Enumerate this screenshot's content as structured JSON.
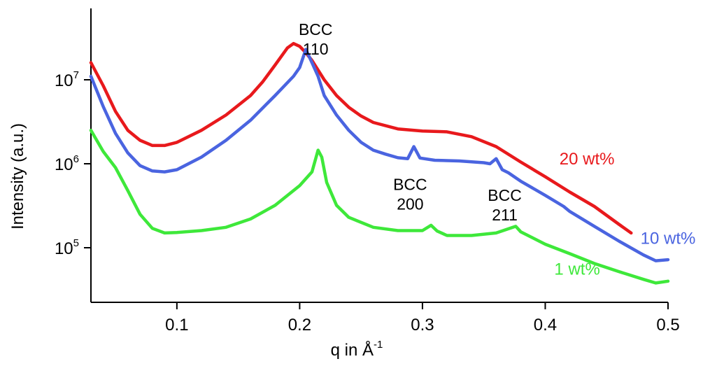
{
  "chart_data": {
    "type": "line",
    "title": "",
    "xlabel": {
      "main": "q in Å",
      "superscript": "-1"
    },
    "ylabel": "Intensity (a.u.)",
    "x_scale": "linear",
    "y_scale": "log",
    "xlim": [
      0.03,
      0.5
    ],
    "ylim": [
      30000,
      100000000
    ],
    "x_ticks": [
      0.1,
      0.2,
      0.3,
      0.4,
      0.5
    ],
    "x_tick_labels": [
      "0.1",
      "0.2",
      "0.3",
      "0.4",
      "0.5"
    ],
    "y_ticks": [
      100000,
      1000000,
      10000000
    ],
    "y_tick_labels": [
      {
        "base": "10",
        "exp": "5"
      },
      {
        "base": "10",
        "exp": "6"
      },
      {
        "base": "10",
        "exp": "7"
      }
    ],
    "grid": false,
    "legend": "none",
    "series": [
      {
        "name": "20 wt%",
        "color": "#e8191c",
        "points": [
          [
            0.03,
            16000000
          ],
          [
            0.04,
            8500000
          ],
          [
            0.05,
            4200000
          ],
          [
            0.06,
            2500000
          ],
          [
            0.07,
            1900000
          ],
          [
            0.08,
            1650000
          ],
          [
            0.09,
            1650000
          ],
          [
            0.1,
            1800000
          ],
          [
            0.12,
            2500000
          ],
          [
            0.14,
            3800000
          ],
          [
            0.16,
            6500000
          ],
          [
            0.17,
            9500000
          ],
          [
            0.18,
            15000000
          ],
          [
            0.19,
            24000000
          ],
          [
            0.195,
            27000000
          ],
          [
            0.2,
            25000000
          ],
          [
            0.205,
            21000000
          ],
          [
            0.21,
            17000000
          ],
          [
            0.22,
            10000000
          ],
          [
            0.23,
            6500000
          ],
          [
            0.24,
            4700000
          ],
          [
            0.25,
            3700000
          ],
          [
            0.26,
            3100000
          ],
          [
            0.28,
            2600000
          ],
          [
            0.3,
            2450000
          ],
          [
            0.32,
            2400000
          ],
          [
            0.34,
            2100000
          ],
          [
            0.36,
            1600000
          ],
          [
            0.38,
            1050000
          ],
          [
            0.4,
            700000
          ],
          [
            0.42,
            460000
          ],
          [
            0.44,
            310000
          ],
          [
            0.46,
            190000
          ],
          [
            0.47,
            150000
          ]
        ]
      },
      {
        "name": "10 wt%",
        "color": "#4a64e0",
        "points": [
          [
            0.03,
            11000000
          ],
          [
            0.04,
            4800000
          ],
          [
            0.05,
            2300000
          ],
          [
            0.06,
            1350000
          ],
          [
            0.07,
            950000
          ],
          [
            0.08,
            820000
          ],
          [
            0.09,
            800000
          ],
          [
            0.1,
            850000
          ],
          [
            0.12,
            1200000
          ],
          [
            0.14,
            1900000
          ],
          [
            0.16,
            3300000
          ],
          [
            0.18,
            6500000
          ],
          [
            0.195,
            11000000
          ],
          [
            0.2,
            14000000
          ],
          [
            0.205,
            23000000
          ],
          [
            0.21,
            16000000
          ],
          [
            0.215,
            11000000
          ],
          [
            0.22,
            6500000
          ],
          [
            0.23,
            3800000
          ],
          [
            0.24,
            2500000
          ],
          [
            0.25,
            1800000
          ],
          [
            0.26,
            1450000
          ],
          [
            0.27,
            1300000
          ],
          [
            0.28,
            1180000
          ],
          [
            0.288,
            1150000
          ],
          [
            0.293,
            1600000
          ],
          [
            0.298,
            1170000
          ],
          [
            0.31,
            1100000
          ],
          [
            0.33,
            1080000
          ],
          [
            0.35,
            1030000
          ],
          [
            0.355,
            1000000
          ],
          [
            0.36,
            1150000
          ],
          [
            0.365,
            850000
          ],
          [
            0.37,
            780000
          ],
          [
            0.38,
            620000
          ],
          [
            0.4,
            420000
          ],
          [
            0.415,
            310000
          ],
          [
            0.42,
            270000
          ],
          [
            0.44,
            180000
          ],
          [
            0.46,
            120000
          ],
          [
            0.48,
            82000
          ],
          [
            0.49,
            70000
          ],
          [
            0.5,
            72000
          ]
        ]
      },
      {
        "name": "1 wt%",
        "color": "#3ee83a",
        "points": [
          [
            0.03,
            2500000
          ],
          [
            0.04,
            1400000
          ],
          [
            0.05,
            900000
          ],
          [
            0.06,
            480000
          ],
          [
            0.07,
            250000
          ],
          [
            0.08,
            170000
          ],
          [
            0.09,
            150000
          ],
          [
            0.1,
            152000
          ],
          [
            0.12,
            160000
          ],
          [
            0.14,
            175000
          ],
          [
            0.16,
            220000
          ],
          [
            0.18,
            320000
          ],
          [
            0.2,
            550000
          ],
          [
            0.21,
            800000
          ],
          [
            0.215,
            1450000
          ],
          [
            0.218,
            1200000
          ],
          [
            0.222,
            600000
          ],
          [
            0.23,
            320000
          ],
          [
            0.24,
            230000
          ],
          [
            0.26,
            175000
          ],
          [
            0.28,
            160000
          ],
          [
            0.3,
            160000
          ],
          [
            0.307,
            185000
          ],
          [
            0.312,
            158000
          ],
          [
            0.32,
            140000
          ],
          [
            0.34,
            140000
          ],
          [
            0.36,
            150000
          ],
          [
            0.376,
            180000
          ],
          [
            0.38,
            155000
          ],
          [
            0.4,
            110000
          ],
          [
            0.42,
            85000
          ],
          [
            0.44,
            65000
          ],
          [
            0.46,
            52000
          ],
          [
            0.48,
            42000
          ],
          [
            0.49,
            38000
          ],
          [
            0.5,
            40000
          ]
        ]
      }
    ],
    "series_labels": [
      {
        "text": "20 wt%",
        "color": "#e8191c",
        "q": 0.434,
        "i": 980000
      },
      {
        "text": "10 wt%",
        "color": "#4a64e0",
        "q": 0.5,
        "i": 111000
      },
      {
        "text": "1 wt%",
        "color": "#3ee83a",
        "q": 0.426,
        "i": 48000
      }
    ],
    "annotations": [
      {
        "lines": [
          "BCC",
          "110"
        ],
        "q": 0.213,
        "i": 34000000
      },
      {
        "lines": [
          "BCC",
          "200"
        ],
        "q": 0.29,
        "i": 485000
      },
      {
        "lines": [
          "BCC",
          "211"
        ],
        "q": 0.367,
        "i": 360000
      }
    ]
  }
}
